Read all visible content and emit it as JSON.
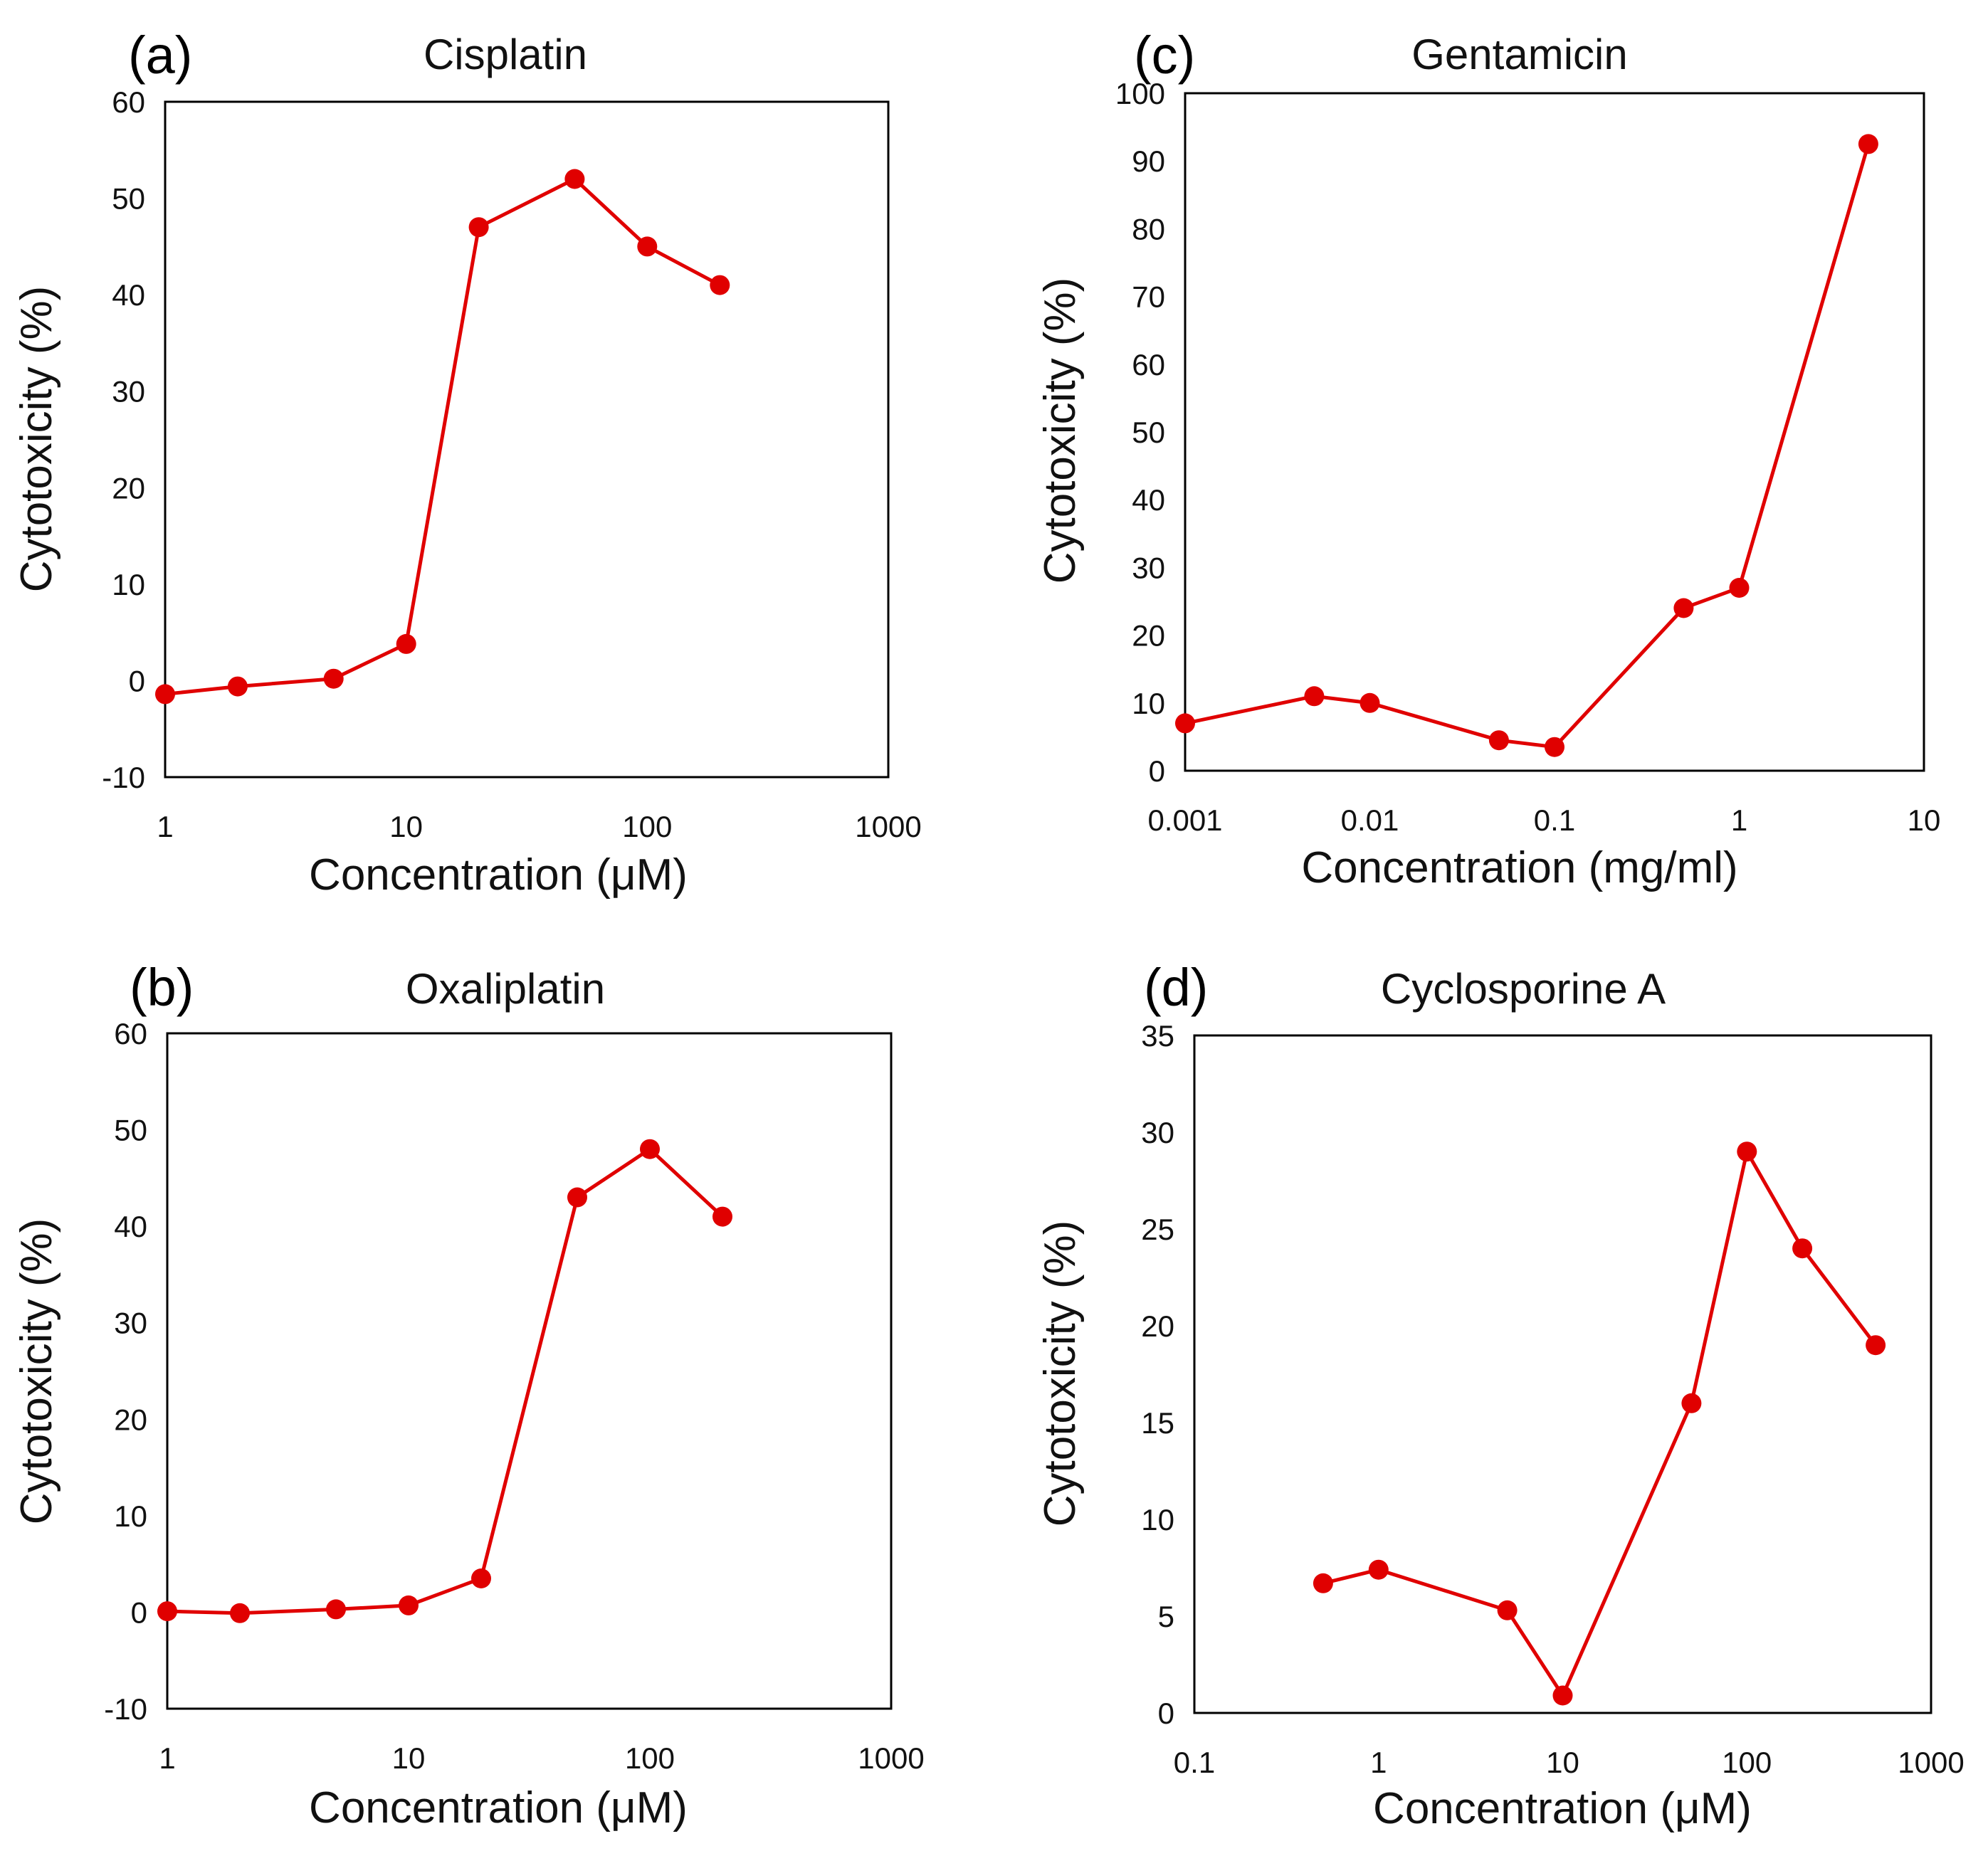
{
  "series_color": "#e00000",
  "chart_data": [
    {
      "type": "line",
      "panel": "(a)",
      "title": "Cisplatin",
      "xlabel": "Concentration (μM)",
      "ylabel": "Cytotoxicity (%)",
      "xscale": "log",
      "xlim": [
        1,
        1000
      ],
      "ylim": [
        -10,
        60
      ],
      "xticks": [
        1,
        10,
        100,
        1000
      ],
      "xtick_labels": [
        "1",
        "10",
        "100",
        "1000"
      ],
      "yticks": [
        -10,
        0,
        10,
        20,
        30,
        40,
        50,
        60
      ],
      "ytick_labels": [
        "-10",
        "0",
        "10",
        "20",
        "30",
        "40",
        "50",
        "60"
      ],
      "grid": false,
      "series": [
        {
          "name": "Cisplatin",
          "x": [
            1,
            2,
            5,
            10,
            20,
            50,
            100,
            200
          ],
          "y": [
            -1.4,
            -0.6,
            0.2,
            3.8,
            47,
            52,
            45,
            41
          ]
        }
      ]
    },
    {
      "type": "line",
      "panel": "(b)",
      "title": "Oxaliplatin",
      "xlabel": "Concentration (μM)",
      "ylabel": "Cytotoxicity (%)",
      "xscale": "log",
      "xlim": [
        1,
        1000
      ],
      "ylim": [
        -10,
        60
      ],
      "xticks": [
        1,
        10,
        100,
        1000
      ],
      "xtick_labels": [
        "1",
        "10",
        "100",
        "1000"
      ],
      "yticks": [
        -10,
        0,
        10,
        20,
        30,
        40,
        50,
        60
      ],
      "ytick_labels": [
        "-10",
        "0",
        "10",
        "20",
        "30",
        "40",
        "50",
        "60"
      ],
      "grid": false,
      "series": [
        {
          "name": "Oxaliplatin",
          "x": [
            1,
            2,
            5,
            10,
            20,
            50,
            100,
            200
          ],
          "y": [
            0.1,
            -0.1,
            0.3,
            0.7,
            3.5,
            43,
            48,
            41
          ]
        }
      ]
    },
    {
      "type": "line",
      "panel": "(c)",
      "title": "Gentamicin",
      "xlabel": "Concentration (mg/ml)",
      "ylabel": "Cytotoxicity (%)",
      "xscale": "log",
      "xlim": [
        0.001,
        10
      ],
      "ylim": [
        0,
        100
      ],
      "xticks": [
        0.001,
        0.01,
        0.1,
        1,
        10
      ],
      "xtick_labels": [
        "0.001",
        "0.01",
        "0.1",
        "1",
        "10"
      ],
      "yticks": [
        0,
        10,
        20,
        30,
        40,
        50,
        60,
        70,
        80,
        90,
        100
      ],
      "ytick_labels": [
        "0",
        "10",
        "20",
        "30",
        "40",
        "50",
        "60",
        "70",
        "80",
        "90",
        "100"
      ],
      "grid": false,
      "series": [
        {
          "name": "Gentamicin",
          "x": [
            0.001,
            0.005,
            0.01,
            0.05,
            0.1,
            0.5,
            1,
            5
          ],
          "y": [
            7,
            11,
            10,
            4.5,
            3.5,
            24,
            27,
            92.5
          ]
        }
      ]
    },
    {
      "type": "line",
      "panel": "(d)",
      "title": "Cyclosporine A",
      "xlabel": "Concentration (μM)",
      "ylabel": "Cytotoxicity (%)",
      "xscale": "log",
      "xlim": [
        0.1,
        1000
      ],
      "ylim": [
        0,
        35
      ],
      "xticks": [
        0.1,
        1,
        10,
        100,
        1000
      ],
      "xtick_labels": [
        "0.1",
        "1",
        "10",
        "100",
        "1000"
      ],
      "yticks": [
        0,
        5,
        10,
        15,
        20,
        25,
        30,
        35
      ],
      "ytick_labels": [
        "0",
        "5",
        "10",
        "15",
        "20",
        "25",
        "30",
        "35"
      ],
      "grid": false,
      "series": [
        {
          "name": "Cyclosporine A",
          "x": [
            0.5,
            1,
            5,
            10,
            50,
            100,
            200,
            500
          ],
          "y": [
            6.7,
            7.4,
            5.3,
            0.9,
            16,
            29,
            24,
            19
          ]
        }
      ]
    }
  ]
}
